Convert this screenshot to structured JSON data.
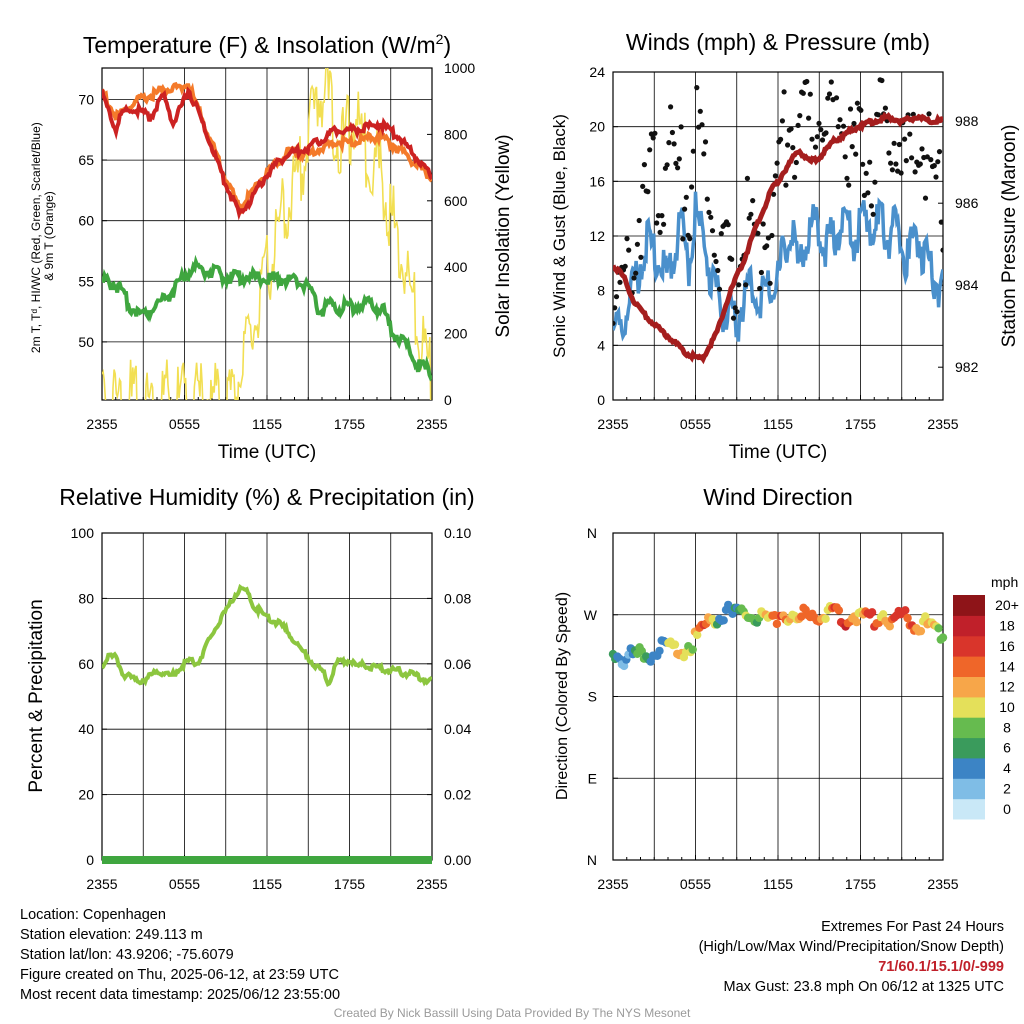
{
  "chart_data": [
    {
      "type": "line",
      "title": "Temperature (F) & Insolation (W/m²)",
      "title_main": "Temperature (F) & Insolation (W/m",
      "title_sup": "2",
      "title_end": ")",
      "xlabel": "Time (UTC)",
      "ylabel_lines": [
        "2m T, Tᵈ, HI/WC (Red, Green, Scarlet/Blue)",
        "& 9m T (Orange)"
      ],
      "ylabel_right": "Solar Insolation (Yellow)",
      "x_ticks": [
        "2355",
        "0555",
        "1155",
        "1755",
        "2355"
      ],
      "ylim": [
        45.2,
        72.6
      ],
      "y_ticks": [
        50,
        55,
        60,
        65,
        70
      ],
      "ylim_right": [
        0,
        1000
      ],
      "y_ticks_right": [
        0,
        200,
        400,
        600,
        800,
        1000
      ],
      "series": [
        {
          "role": "2m T",
          "color": "#cc2222",
          "x": [
            0,
            1,
            1.5,
            2.5,
            3.5,
            4.5,
            5.2,
            6.3,
            7,
            8,
            9,
            10,
            11,
            11.8,
            12.5,
            13.5,
            15,
            17,
            18.5,
            20.2,
            21.5,
            23,
            24
          ],
          "y": [
            70.5,
            67.5,
            69.0,
            69.2,
            68.5,
            70.3,
            68.0,
            70.8,
            69.0,
            66.0,
            63.0,
            60.5,
            62.0,
            63.5,
            64.5,
            65.5,
            66.0,
            67.5,
            67.5,
            68.0,
            67.0,
            65.0,
            63.5
          ]
        },
        {
          "role": "9m T",
          "color": "#f47a2a",
          "x": [
            0,
            1,
            2.5,
            4.5,
            6.3,
            9,
            10,
            11.8,
            13.5,
            15,
            17,
            18.5,
            20.2,
            21.5,
            23,
            24
          ],
          "y": [
            70.8,
            68.5,
            69.8,
            70.8,
            71.2,
            63.5,
            61.0,
            63.8,
            65.6,
            65.5,
            66.5,
            66.5,
            67.0,
            66.0,
            64.5,
            63.4
          ]
        },
        {
          "role": "Td",
          "color": "#3fa63f",
          "x": [
            0,
            1,
            2,
            3,
            4,
            5,
            6,
            7,
            8,
            9,
            10,
            11,
            12,
            13,
            14,
            15,
            15.8,
            16.5,
            17.5,
            18.5,
            19.5,
            20.5,
            21,
            22,
            23,
            24
          ],
          "y": [
            55.0,
            54.8,
            53.0,
            52.2,
            53.2,
            54.0,
            55.5,
            56.2,
            55.7,
            55.4,
            55.4,
            55.3,
            55.2,
            55.2,
            55.0,
            54.7,
            52.5,
            53.0,
            52.8,
            53.0,
            53.2,
            52.5,
            51.0,
            50.0,
            48.0,
            47.5
          ]
        },
        {
          "role": "Insolation",
          "color": "#f2df53",
          "axis": "right",
          "x": [
            0,
            0.2,
            0.5,
            2,
            4,
            6,
            8,
            9.2,
            9.8,
            10.6,
            11.5,
            12.3,
            13.2,
            14,
            14.8,
            15.6,
            16.2,
            16.8,
            17.5,
            18.4,
            19.2,
            20,
            21,
            22,
            23,
            24
          ],
          "y": [
            45,
            20,
            3,
            2,
            2,
            2,
            2,
            3,
            50,
            150,
            290,
            430,
            560,
            640,
            760,
            900,
            960,
            840,
            760,
            860,
            740,
            720,
            560,
            400,
            220,
            50
          ]
        }
      ]
    },
    {
      "type": "line",
      "title": "Winds (mph) & Pressure (mb)",
      "xlabel": "Time (UTC)",
      "ylabel": "Sonic Wind & Gust (Blue, Black)",
      "ylabel_right": "Station Pressure (Maroon)",
      "x_ticks": [
        "2355",
        "0555",
        "1155",
        "1755",
        "2355"
      ],
      "ylim": [
        0,
        24
      ],
      "y_ticks": [
        0,
        4,
        8,
        12,
        16,
        20,
        24
      ],
      "ylim_right": [
        981.2,
        989.2
      ],
      "y_ticks_right": [
        982,
        984,
        986,
        988
      ],
      "series": [
        {
          "role": "Sonic Wind",
          "color": "#4a90cc",
          "x": [
            0,
            0.5,
            1,
            1.5,
            2,
            2.5,
            3,
            3.5,
            4,
            4.5,
            5,
            5.5,
            6,
            6.5,
            7,
            7.5,
            8,
            8.5,
            9,
            9.5,
            10,
            10.5,
            11,
            11.5,
            12,
            12.5,
            13,
            13.5,
            14,
            14.5,
            15,
            15.5,
            16,
            16.5,
            17,
            17.5,
            18,
            18.5,
            19,
            19.5,
            20,
            20.5,
            21,
            21.5,
            22,
            22.5,
            23,
            23.5,
            24
          ],
          "y": [
            5.5,
            4.5,
            6.5,
            8.5,
            10.0,
            11.5,
            10.5,
            9.5,
            9.0,
            11.5,
            12.5,
            10.0,
            13.5,
            12.0,
            9.5,
            8.0,
            6.5,
            6.0,
            5.5,
            7.5,
            8.5,
            7.0,
            8.5,
            7.5,
            9.0,
            11.0,
            12.0,
            9.5,
            11.5,
            12.5,
            13.0,
            11.0,
            12.0,
            12.5,
            13.0,
            11.5,
            12.5,
            13.5,
            12.0,
            13.5,
            12.0,
            12.5,
            11.5,
            10.0,
            12.5,
            11.0,
            9.5,
            8.5,
            8.0
          ]
        },
        {
          "role": "Gust",
          "color": "#111111",
          "style": "dots",
          "x": [
            0,
            0.5,
            1,
            1.5,
            2,
            2.5,
            3,
            3.5,
            4,
            4.5,
            5,
            5.5,
            6,
            6.5,
            7,
            7.5,
            8,
            8.5,
            9,
            9.5,
            10,
            10.5,
            11,
            11.5,
            12,
            12.5,
            13,
            13.5,
            14,
            14.5,
            15,
            15.5,
            16,
            16.5,
            17,
            17.5,
            18,
            18.5,
            19,
            19.5,
            20,
            20.5,
            21,
            21.5,
            22,
            22.5,
            23,
            23.5,
            24
          ],
          "y": [
            8.5,
            7.0,
            10.0,
            12.0,
            13.5,
            15.0,
            17.0,
            15.5,
            19.0,
            17.5,
            16.0,
            14.5,
            21.0,
            18.5,
            14.0,
            12.5,
            10.0,
            9.5,
            8.5,
            11.0,
            13.5,
            11.0,
            14.0,
            12.0,
            16.5,
            19.5,
            21.0,
            18.0,
            19.5,
            20.0,
            22.0,
            18.5,
            20.5,
            21.0,
            19.5,
            18.0,
            17.5,
            19.0,
            17.0,
            20.5,
            18.0,
            19.5,
            18.5,
            17.0,
            18.0,
            19.5,
            17.5,
            15.0,
            13.5
          ]
        },
        {
          "role": "Station Pressure",
          "color": "#a51e1e",
          "axis": "right",
          "x": [
            0,
            0.8,
            1.5,
            2.5,
            3.5,
            4.5,
            5.5,
            6.5,
            7.5,
            8.5,
            9.5,
            10.5,
            11.5,
            12.5,
            13.5,
            14.3,
            15,
            16,
            17,
            18,
            19,
            20,
            21,
            22,
            23,
            24
          ],
          "y": [
            984.5,
            984.2,
            983.6,
            983.2,
            982.9,
            982.6,
            982.3,
            982.2,
            982.8,
            983.8,
            984.6,
            985.5,
            986.3,
            986.8,
            987.3,
            987.0,
            987.1,
            987.5,
            987.7,
            987.9,
            988.0,
            988.1,
            988.0,
            988.1,
            988.0,
            988.0
          ]
        }
      ]
    },
    {
      "type": "line",
      "title": "Relative Humidity (%) & Precipitation (in)",
      "ylabel": "Percent & Precipitation",
      "x_ticks": [
        "2355",
        "0555",
        "1155",
        "1755",
        "2355"
      ],
      "ylim": [
        0,
        100
      ],
      "y_ticks": [
        0,
        20,
        40,
        60,
        80,
        100
      ],
      "ylim_right": [
        0,
        0.1
      ],
      "y_ticks_right": [
        "0.00",
        "0.02",
        "0.04",
        "0.06",
        "0.08",
        "0.10"
      ],
      "series": [
        {
          "role": "Relative Humidity",
          "color": "#8cc63f",
          "x": [
            0,
            0.5,
            1,
            1.5,
            2,
            2.5,
            3,
            3.5,
            4,
            4.5,
            5,
            5.5,
            6,
            6.5,
            7,
            7.5,
            8,
            8.5,
            9,
            9.5,
            10,
            10.5,
            11,
            11.5,
            12,
            12.5,
            13,
            13.5,
            14,
            14.5,
            15,
            15.5,
            16,
            16.5,
            17,
            17.5,
            18,
            18.5,
            19,
            19.5,
            20,
            20.5,
            21,
            21.5,
            22,
            22.5,
            23,
            23.5,
            24
          ],
          "y": [
            59,
            62,
            62,
            57,
            56,
            55,
            55,
            56,
            58,
            57,
            56,
            58,
            60,
            61,
            60,
            65,
            69,
            73,
            76,
            80,
            83,
            82,
            78,
            76,
            74,
            73,
            72,
            70,
            67,
            64,
            62,
            59,
            58,
            54,
            60,
            61,
            61,
            59,
            60,
            59,
            59,
            58,
            58,
            58,
            57,
            57,
            56,
            55,
            55
          ]
        },
        {
          "role": "Precipitation",
          "color": "#3fa63f",
          "axis": "right",
          "x": [
            0,
            24
          ],
          "y": [
            0,
            0
          ]
        }
      ]
    },
    {
      "type": "scatter",
      "title": "Wind Direction",
      "ylabel": "Direction (Colored By Speed)",
      "x_ticks": [
        "2355",
        "0555",
        "1155",
        "1755",
        "2355"
      ],
      "y_ticks": [
        "N",
        "E",
        "S",
        "W",
        "N"
      ],
      "ylim": [
        0,
        360
      ],
      "colorbar": {
        "unit": "mph",
        "labels": [
          "0",
          "2",
          "4",
          "6",
          "8",
          "10",
          "12",
          "14",
          "16",
          "18",
          "20+"
        ],
        "colors": [
          "#c9e8f7",
          "#7fbde6",
          "#3c84c5",
          "#3a9b5c",
          "#66bb4f",
          "#e4e05a",
          "#f7a649",
          "#ef6629",
          "#d9352b",
          "#c0202a",
          "#8e1418"
        ]
      },
      "direction_x": [
        0,
        0.5,
        1,
        1.5,
        2,
        2.5,
        3,
        3.5,
        4,
        4.5,
        5,
        5.5,
        6,
        6.5,
        7,
        7.5,
        8,
        8.5,
        9,
        9.5,
        10,
        10.5,
        11,
        11.5,
        12,
        12.5,
        13,
        13.5,
        14,
        14.5,
        15,
        15.5,
        16,
        16.5,
        17,
        17.5,
        18,
        18.5,
        19,
        19.5,
        20,
        20.5,
        21,
        21.5,
        22,
        22.5,
        23,
        23.5,
        24
      ],
      "direction_y": [
        228,
        224,
        222,
        226,
        225,
        224,
        228,
        232,
        234,
        230,
        228,
        236,
        244,
        250,
        268,
        266,
        270,
        272,
        268,
        274,
        270,
        265,
        266,
        262,
        270,
        272,
        268,
        262,
        272,
        276,
        270,
        264,
        274,
        270,
        266,
        272,
        270,
        262,
        266,
        272,
        268,
        262,
        270,
        266,
        258,
        262,
        256,
        250,
        246
      ],
      "speed": [
        5,
        4,
        4,
        5,
        6,
        6,
        5,
        6,
        7,
        9,
        11,
        10,
        12,
        13,
        12,
        7,
        6,
        5,
        4,
        7,
        9,
        8,
        11,
        10,
        13,
        14,
        12,
        11,
        13,
        14,
        15,
        12,
        13,
        14,
        16,
        13,
        12,
        14,
        15,
        13,
        12,
        16,
        14,
        13,
        15,
        12,
        11,
        9,
        8
      ]
    }
  ],
  "info": {
    "location": "Location: Copenhagen",
    "elevation": "Station elevation: 249.113 m",
    "latlon": "Station lat/lon: 43.9206; -75.6079",
    "created": "Figure created on Thu, 2025-06-12, at 23:59 UTC",
    "recent": "Most recent data timestamp: 2025/06/12 23:55:00"
  },
  "extremes": {
    "title": "Extremes For Past 24 Hours",
    "subtitle": "(High/Low/Max Wind/Precipitation/Snow Depth)",
    "values": "71/60.1/15.1/0/-999",
    "max_gust": "Max Gust: 23.8 mph On 06/12 at 1325 UTC"
  },
  "credit": "Created By Nick Bassill Using Data Provided By The NYS Mesonet"
}
